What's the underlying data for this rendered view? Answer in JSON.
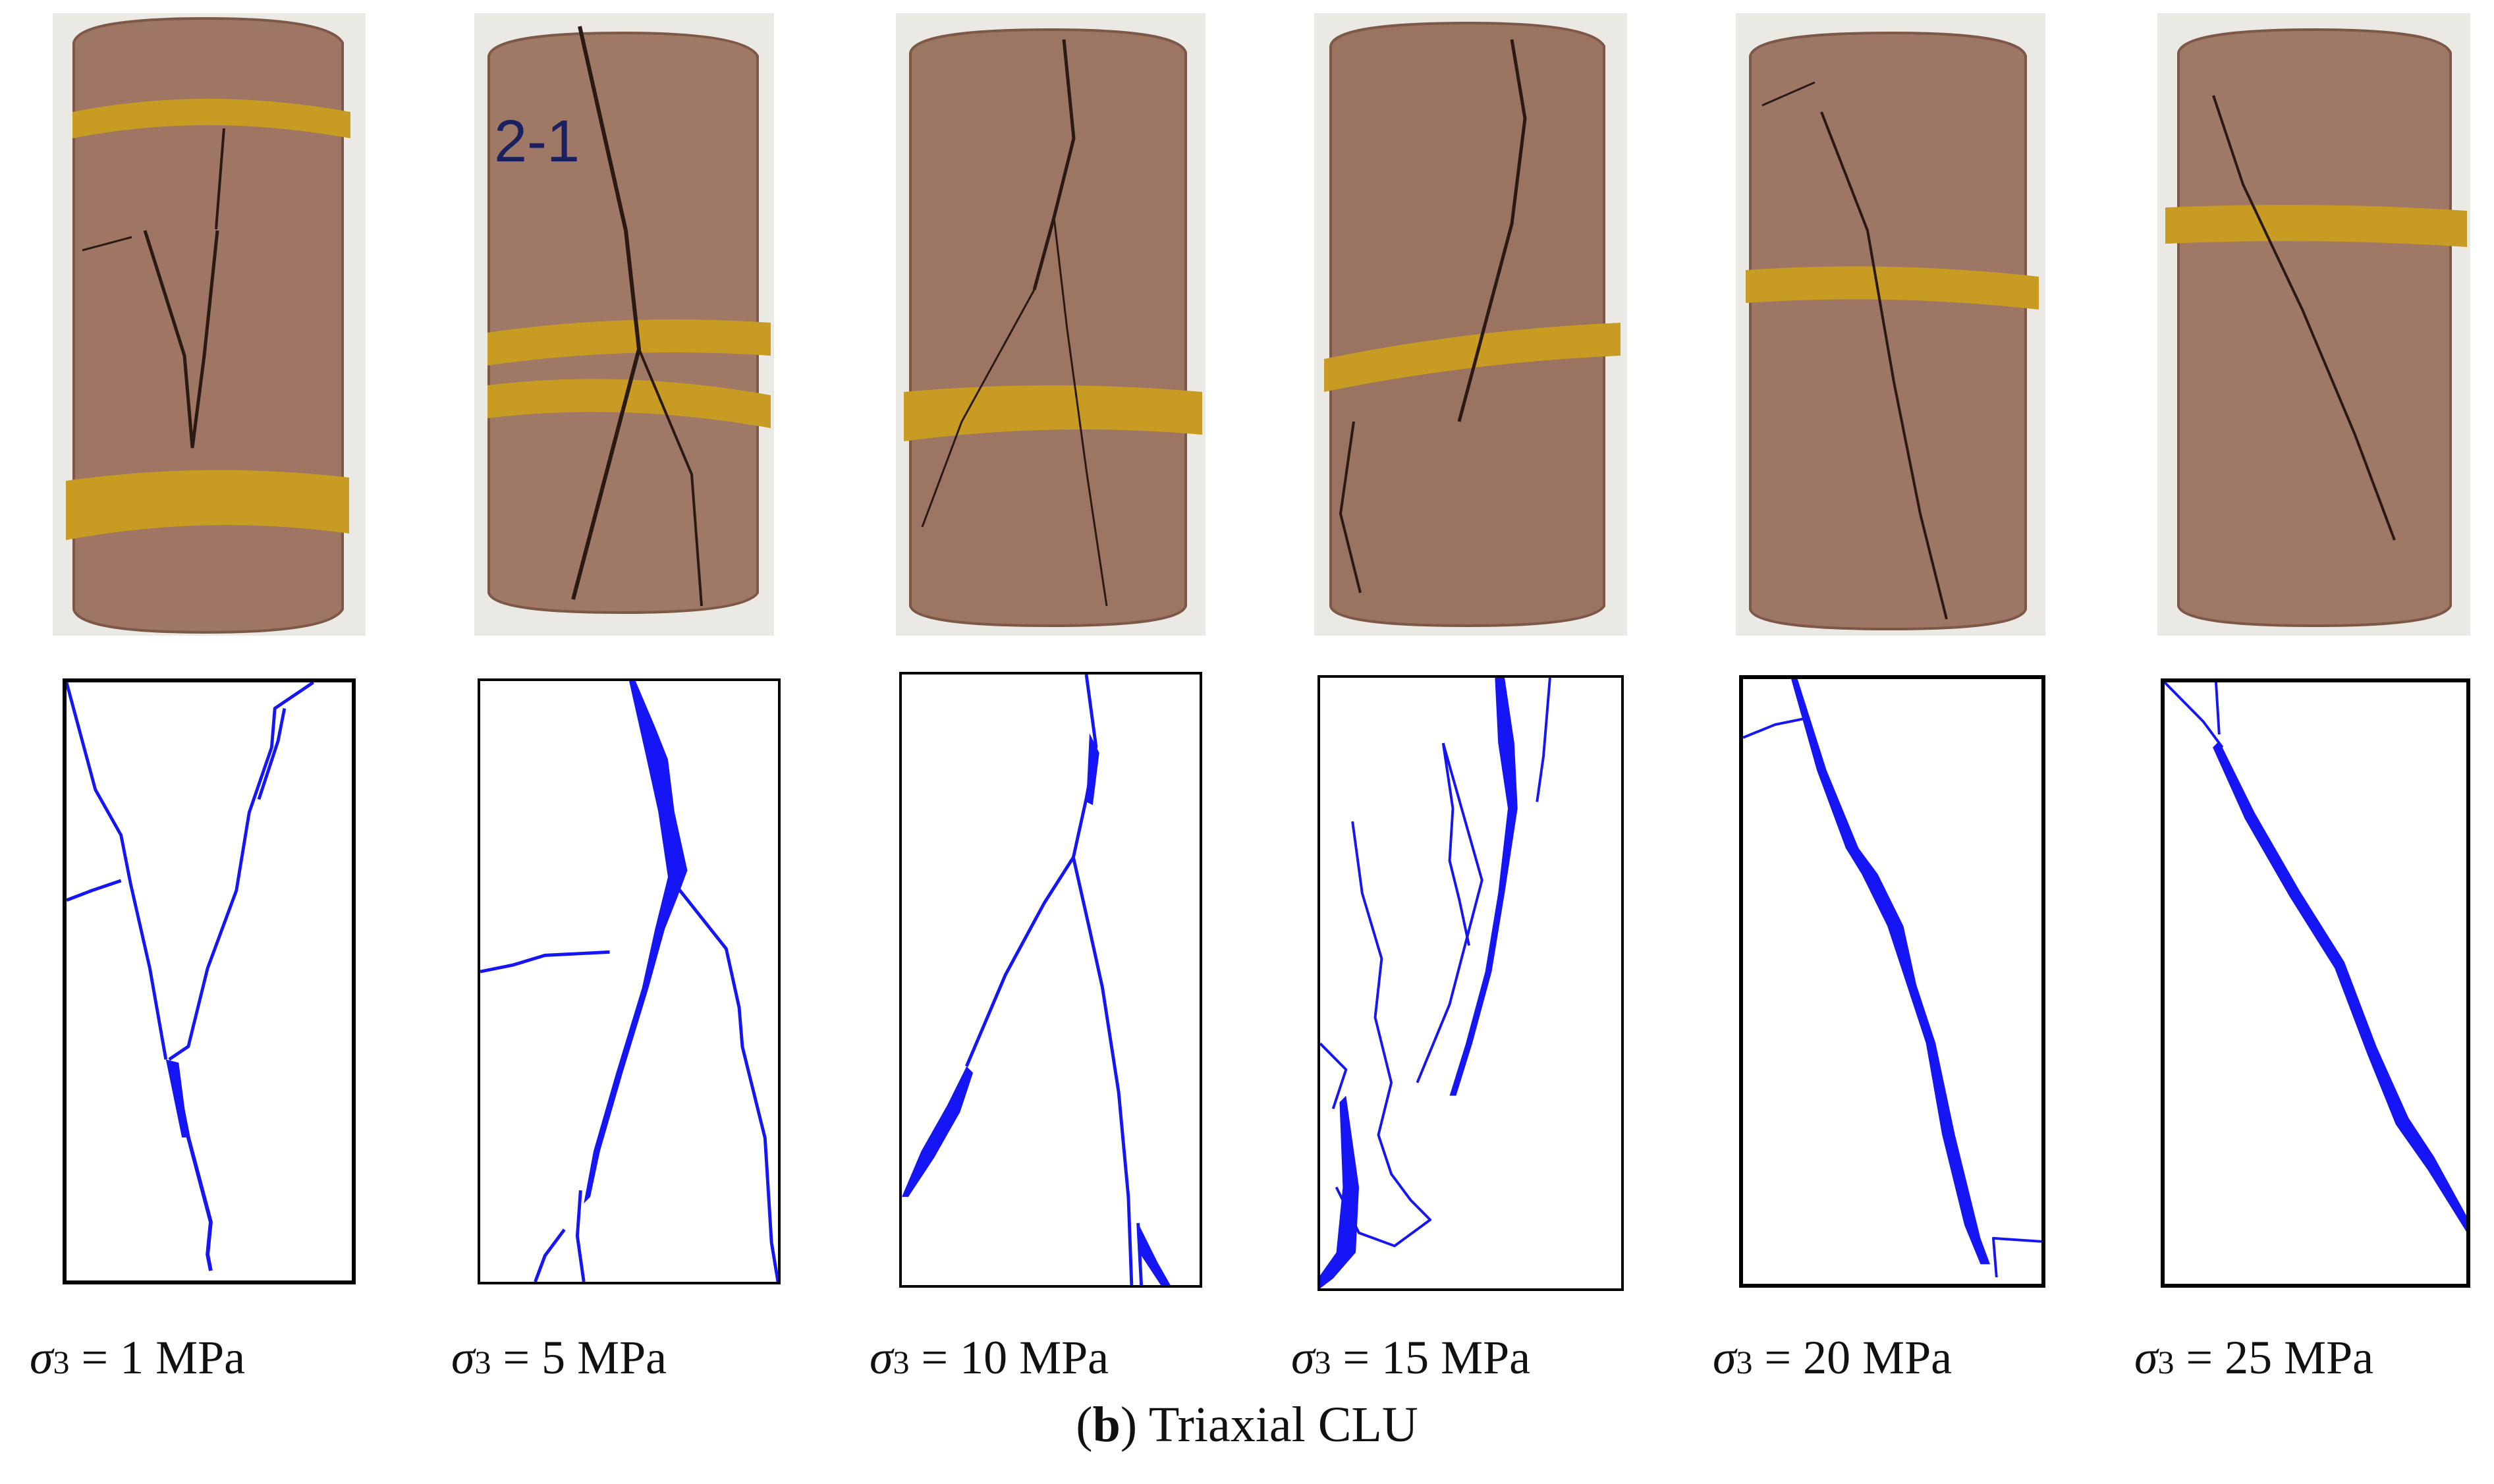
{
  "figure": {
    "caption_letter": "b",
    "caption_text": "Triaxial CLU"
  },
  "specimens": [
    {
      "symbol": "σ",
      "subscript": "3",
      "value": "= 1 MPa"
    },
    {
      "symbol": "σ",
      "subscript": "3",
      "value": "= 5 MPa"
    },
    {
      "symbol": "σ",
      "subscript": "3",
      "value": "= 10 MPa"
    },
    {
      "symbol": "σ",
      "subscript": "3",
      "value": "= 15 MPa"
    },
    {
      "symbol": "σ",
      "subscript": "3",
      "value": "= 20 MPa"
    },
    {
      "symbol": "σ",
      "subscript": "3",
      "value": "= 25 MPa"
    }
  ],
  "specimen_note": "2-1",
  "colors": {
    "crack_line": "#1515f5",
    "rock": "#9c7562",
    "rubber_band": "#c79a1e",
    "sketch_border": "#000000"
  }
}
